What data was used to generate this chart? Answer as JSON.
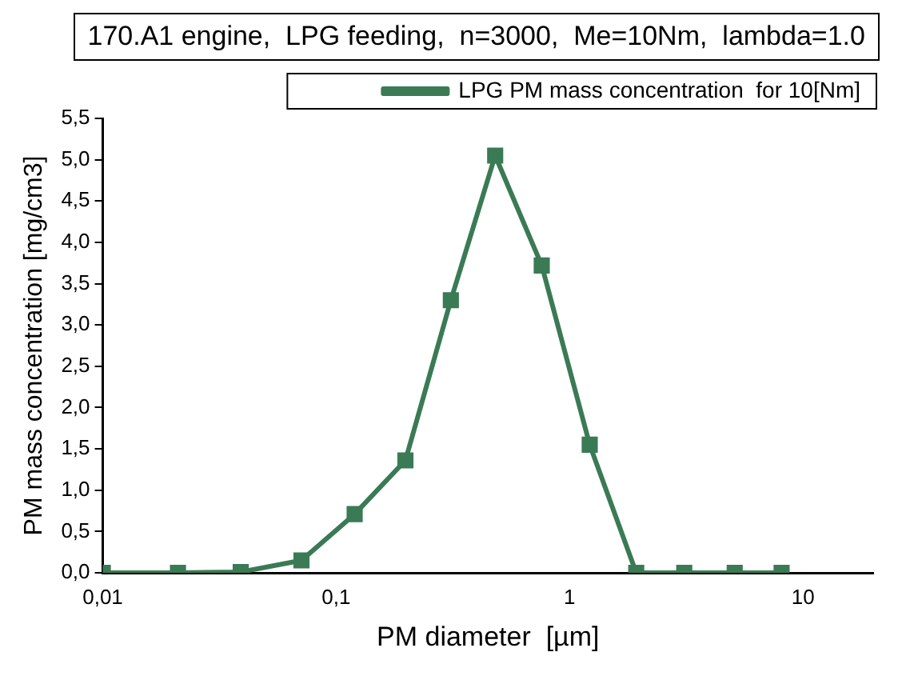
{
  "chart_data": {
    "type": "line",
    "title": "170.A1 engine,  LPG feeding,  n=3000,  Me=10Nm,  lambda=1.0",
    "xlabel": "PM diameter  [µm]",
    "ylabel": "PM mass concentration [mg/cm3]",
    "x": [
      0.01,
      0.021,
      0.039,
      0.071,
      0.12,
      0.198,
      0.31,
      0.48,
      0.76,
      1.22,
      1.93,
      3.1,
      5.1,
      8.1
    ],
    "series": [
      {
        "name": "LPG PM mass concentration  for 10[Nm]",
        "color": "#3a7a55",
        "values": [
          0,
          0,
          0.01,
          0.15,
          0.71,
          1.36,
          3.3,
          5.05,
          3.72,
          1.55,
          0,
          0,
          0,
          0
        ]
      }
    ],
    "log": "x",
    "xlim": [
      0.01,
      20
    ],
    "xticks": [
      {
        "value": 0.01,
        "label": "0,01"
      },
      {
        "value": 0.1,
        "label": "0,1"
      },
      1,
      10
    ],
    "ylim": [
      0,
      5.5
    ],
    "yticks": [
      {
        "value": 0,
        "label": "0,0"
      },
      {
        "value": 0.5,
        "label": "0,5"
      },
      {
        "value": 1,
        "label": "1,0"
      },
      {
        "value": 1.5,
        "label": "1,5"
      },
      {
        "value": 2,
        "label": "2,0"
      },
      {
        "value": 2.5,
        "label": "2,5"
      },
      {
        "value": 3,
        "label": "3,0"
      },
      {
        "value": 3.5,
        "label": "3,5"
      },
      {
        "value": 4,
        "label": "4,0"
      },
      {
        "value": 4.5,
        "label": "4,5"
      },
      {
        "value": 5,
        "label": "5,0"
      },
      {
        "value": 5.5,
        "label": "5,5"
      }
    ],
    "grid": false,
    "legend": "top right",
    "marker": "square",
    "line_style": "solid"
  }
}
